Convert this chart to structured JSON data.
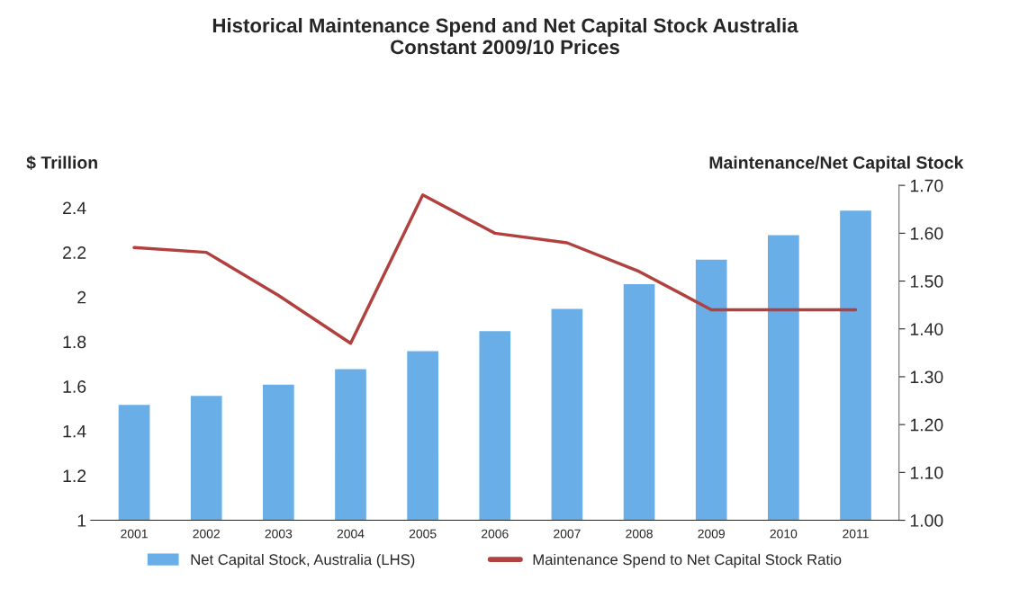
{
  "chart_data": {
    "type": "bar",
    "title": "Historical Maintenance Spend and Net Capital Stock Australia\nConstant 2009/10 Prices",
    "ylabel": "$ Trillion",
    "y2label": "Maintenance/Net Capital Stock",
    "categories": [
      "2001",
      "2002",
      "2003",
      "2004",
      "2005",
      "2006",
      "2007",
      "2008",
      "2009",
      "2010",
      "2011"
    ],
    "series": [
      {
        "name": "Net Capital Stock, Australia (LHS)",
        "color": "#6aaee8",
        "values": [
          1.52,
          1.56,
          1.61,
          1.68,
          1.76,
          1.85,
          1.95,
          2.06,
          2.17,
          2.28,
          2.39
        ]
      },
      {
        "name": "Maintenance Spend to Net Capital Stock Ratio",
        "type": "line",
        "axis": "y2",
        "color": "#b0413e",
        "values": [
          1.57,
          1.56,
          1.47,
          1.37,
          1.68,
          1.6,
          1.58,
          1.52,
          1.44,
          1.44,
          1.44
        ]
      }
    ],
    "ylim": [
      1,
      2.5
    ],
    "yticks": [
      1,
      1.2,
      1.4,
      1.6,
      1.8,
      2,
      2.2,
      2.4
    ],
    "y2lim": [
      1,
      1.7
    ],
    "y2ticks": [
      {
        "value": 1,
        "label": "1.00"
      },
      {
        "value": 1.1,
        "label": "1.10"
      },
      {
        "value": 1.2,
        "label": "1.20"
      },
      {
        "value": 1.3,
        "label": "1.30"
      },
      {
        "value": 1.4,
        "label": "1.40"
      },
      {
        "value": 1.5,
        "label": "1.50"
      },
      {
        "value": 1.6,
        "label": "1.60"
      },
      {
        "value": 1.7,
        "label": "1.70"
      }
    ],
    "grid": false,
    "legend": "bottom",
    "marker": "none",
    "line_style": "solid"
  }
}
